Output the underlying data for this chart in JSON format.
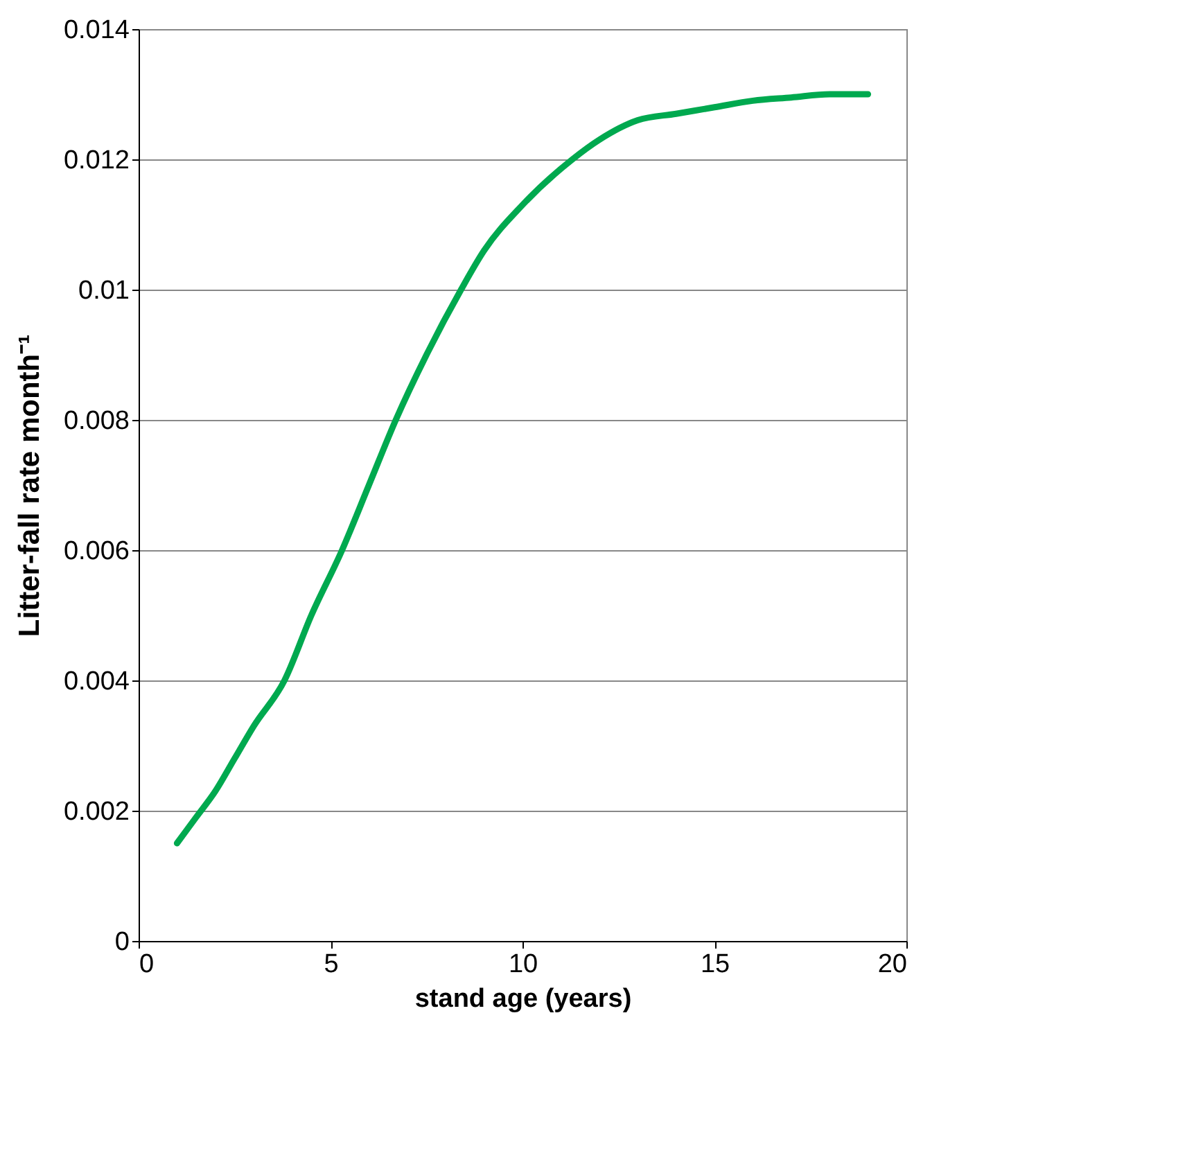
{
  "chart_data": {
    "type": "line",
    "xlabel": "stand age (years)",
    "ylabel": "Litter-fall rate month⁻¹",
    "x": [
      1,
      1.5,
      2,
      2.5,
      3,
      3.8,
      4.5,
      5.3,
      6,
      6.7,
      7.5,
      8.4,
      9,
      10,
      11.3,
      12,
      13,
      14,
      15,
      16,
      17,
      18,
      19
    ],
    "series": [
      {
        "color": "#00a94f",
        "values": [
          0.0015,
          0.0019,
          0.0023,
          0.0028,
          0.0033,
          0.004,
          0.005,
          0.006,
          0.007,
          0.008,
          0.009,
          0.01,
          0.0106,
          0.0113,
          0.012,
          0.0123,
          0.0126,
          0.0127,
          0.0128,
          0.0129,
          0.01295,
          0.013,
          0.013
        ]
      }
    ],
    "xlim": [
      0,
      20
    ],
    "xticks": [
      0,
      5,
      10,
      15,
      20
    ],
    "ylim": [
      0,
      0.014
    ],
    "yticks": [
      0,
      0.002,
      0.004,
      0.006,
      0.008,
      0.01,
      0.012,
      0.014
    ],
    "grid": "y",
    "marker": "none",
    "line_style": "solid"
  }
}
